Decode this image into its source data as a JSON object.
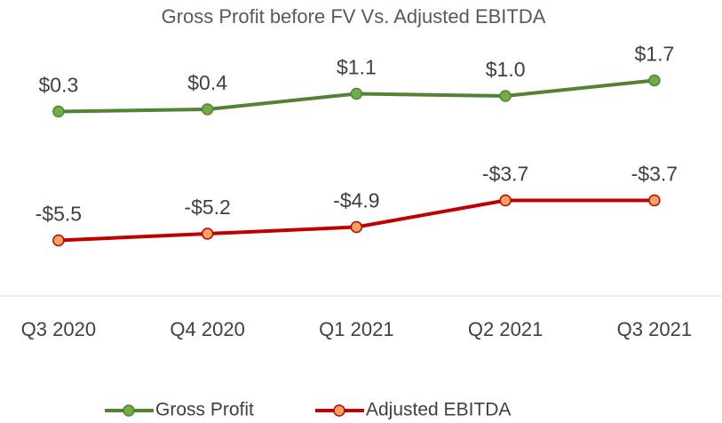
{
  "chart_data": {
    "type": "line",
    "title": "Gross Profit before FV Vs. Adjusted EBITDA",
    "categories": [
      "Q3 2020",
      "Q4 2020",
      "Q1 2021",
      "Q2 2021",
      "Q3 2021"
    ],
    "series": [
      {
        "name": "Gross Profit",
        "color": "#548235",
        "marker_color": "#70ad47",
        "values": [
          0.3,
          0.4,
          1.1,
          1.0,
          1.7
        ],
        "value_labels": [
          "$0.3",
          "$0.4",
          "$1.1",
          "$1.0",
          "$1.7"
        ]
      },
      {
        "name": "Adjusted EBITDA",
        "color": "#c00000",
        "marker_color": "#f4a460",
        "values": [
          -5.5,
          -5.2,
          -4.9,
          -3.7,
          -3.7
        ],
        "value_labels": [
          "-$5.5",
          "-$5.2",
          "-$4.9",
          "-$3.7",
          "-$3.7"
        ]
      }
    ],
    "ylim": [
      -8,
      4
    ],
    "legend": "bottom"
  }
}
